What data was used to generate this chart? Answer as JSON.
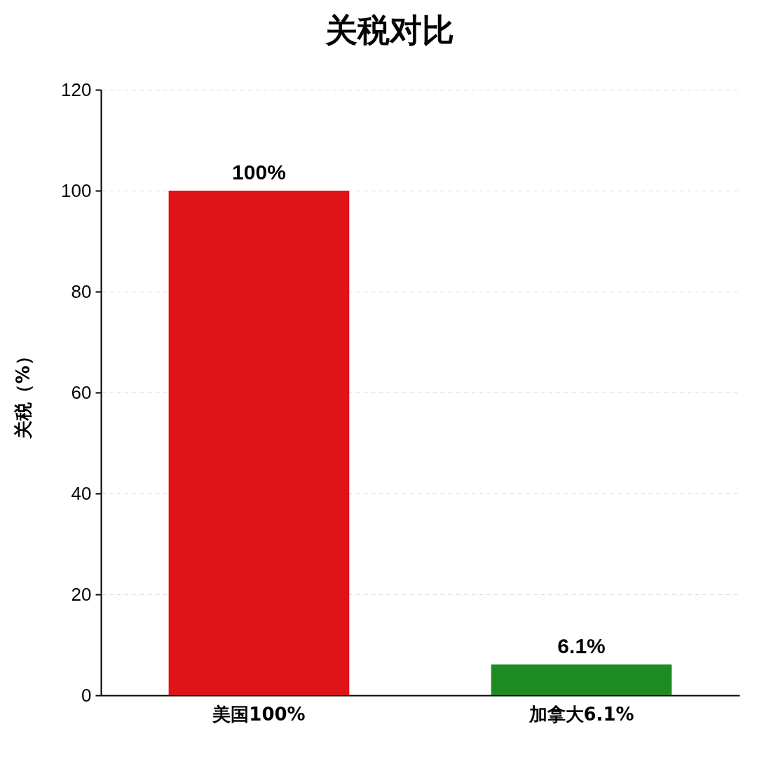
{
  "chart_data": {
    "type": "bar",
    "title": "关税对比",
    "ylabel": "关税（%）",
    "categories": [
      "美国100%",
      "加拿大6.1%"
    ],
    "values": [
      100,
      6.1
    ],
    "colors": [
      "#e01318",
      "#1e8a22"
    ],
    "value_labels": [
      "100%",
      "6.1%"
    ],
    "ylim": [
      0,
      120
    ],
    "yticks": [
      0,
      20,
      40,
      60,
      80,
      100,
      120
    ],
    "grid": "y"
  }
}
